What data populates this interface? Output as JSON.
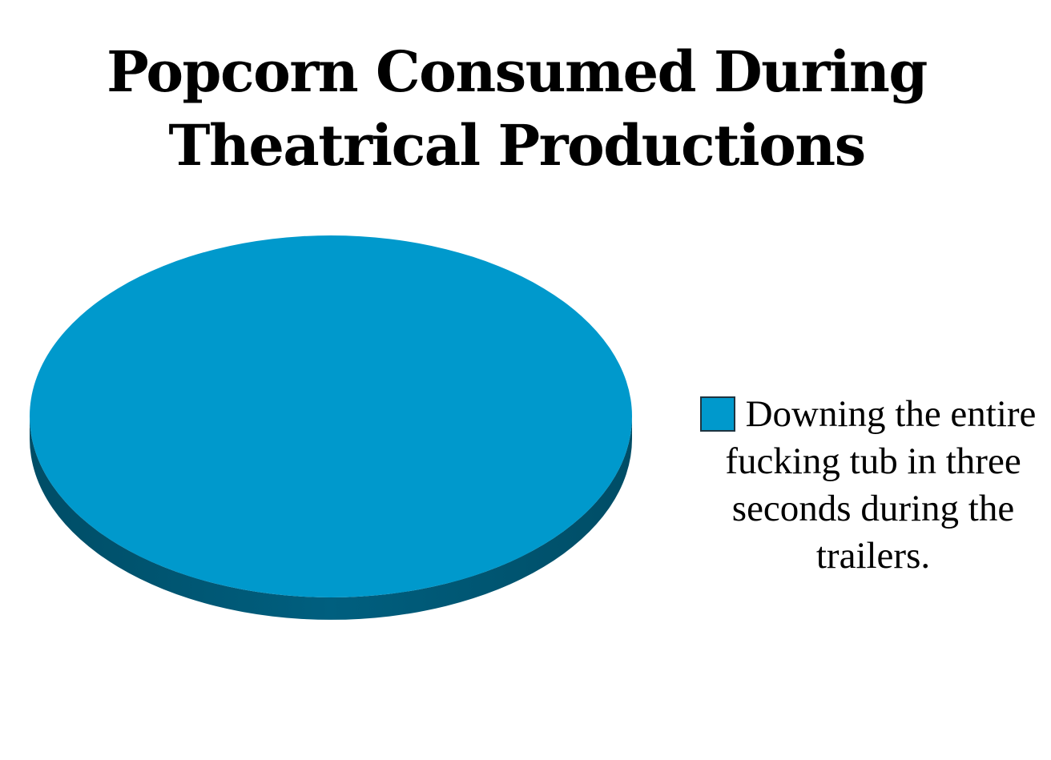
{
  "chart_data": {
    "type": "pie",
    "title": "Popcorn Consumed During\nTheatrical Productions",
    "title_lines": [
      "Popcorn Consumed During",
      "Theatrical Productions"
    ],
    "slices": [
      {
        "label": "Downing the entire fucking tub in three seconds during the trailers.",
        "value": 100,
        "color": "#0099cc",
        "edge_color": "#005a78"
      }
    ],
    "legend": {
      "placement": "right",
      "entries": [
        "Downing the entire fucking tub in three seconds during the trailers."
      ]
    },
    "style": "3d-tilted"
  }
}
